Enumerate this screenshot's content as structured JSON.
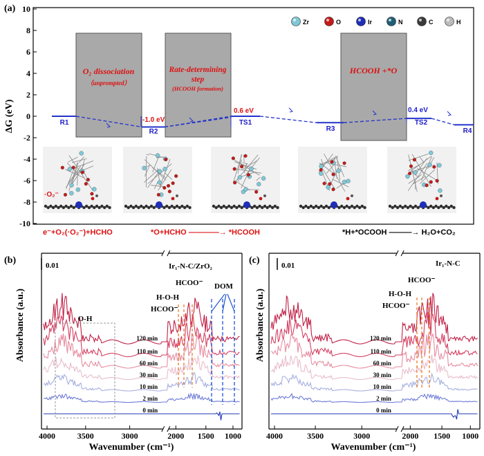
{
  "chart_data": [
    {
      "type": "line",
      "panel": "(a)",
      "ylabel": "ΔG (eV)",
      "ylim": [
        -10,
        10
      ],
      "yticks": [
        "10",
        "8",
        "6",
        "4",
        "2",
        "0",
        "-2",
        "-4",
        "-6",
        "-8",
        "-10"
      ],
      "legend": [
        "Zr",
        "O",
        "Ir",
        "N",
        "C",
        "H"
      ],
      "legend_colors": [
        "#7fc8d8",
        "#c41a1a",
        "#1f2fb8",
        "#1f5f78",
        "#3a3a3a",
        "#bbbbbb"
      ],
      "states": [
        {
          "name": "R1",
          "energy": 0.0
        },
        {
          "name": "R2",
          "energy": -1.0
        },
        {
          "name": "TS1",
          "energy": 0.0
        },
        {
          "name": "R3",
          "energy": -0.6
        },
        {
          "name": "TS2",
          "energy": -0.2
        },
        {
          "name": "R4",
          "energy": -0.8
        }
      ],
      "energy_labels": [
        "-1.0 eV",
        "0.6 eV",
        "0.4 eV"
      ],
      "boxes": [
        {
          "title": "O₂ dissociation",
          "subtitle": "（unprompted）"
        },
        {
          "title": "Rate-determining step",
          "subtitle": "(HCOOH formation)"
        },
        {
          "title": "HCOOH +*O",
          "subtitle": ""
        }
      ],
      "reactions": [
        {
          "text": "e⁻+O₂(·O₂⁻)+HCHO",
          "color": "#dd1111"
        },
        {
          "text": "*O+HCHO ————→ *HCOOH",
          "color": "#dd1111"
        },
        {
          "text": "*H+*OCOOH ———→ H₂O+CO₂",
          "color": "#000000"
        }
      ],
      "o_label": "·O₂⁻"
    },
    {
      "type": "line",
      "panel": "(b)",
      "title": "Ir₁-N-C/ZrO₂",
      "xlabel": "Wavenumber (cm⁻¹)",
      "ylabel": "Absorbance (a.u.)",
      "xticks": [
        "4000",
        "3500",
        "3000",
        "2000",
        "1500",
        "1000"
      ],
      "scale_bar": "0.01",
      "series": [
        {
          "name": "120 min",
          "color": "#c01f45"
        },
        {
          "name": "110 min",
          "color": "#d33d60"
        },
        {
          "name": "60 min",
          "color": "#e68ca0"
        },
        {
          "name": "30 min",
          "color": "#e9bccb"
        },
        {
          "name": "10 min",
          "color": "#a6afe0"
        },
        {
          "name": "2 min",
          "color": "#6c7ad8"
        },
        {
          "name": "0 min",
          "color": "#1f35b3"
        }
      ],
      "annotations": [
        "O-H",
        "H-O-H",
        "HCOO⁻",
        "HCOO⁻",
        "DOM"
      ]
    },
    {
      "type": "line",
      "panel": "(c)",
      "title": "Ir₁-N-C",
      "xlabel": "Wavenumber (cm⁻¹)",
      "ylabel": "Absorbance (a.u.)",
      "xticks": [
        "4000",
        "3500",
        "3000",
        "2000",
        "1500",
        "1000"
      ],
      "scale_bar": "0.01",
      "series": [
        {
          "name": "120 min",
          "color": "#c01f45"
        },
        {
          "name": "110 min",
          "color": "#d33d60"
        },
        {
          "name": "60 min",
          "color": "#e68ca0"
        },
        {
          "name": "30 min",
          "color": "#e9bccb"
        },
        {
          "name": "10 min",
          "color": "#a6afe0"
        },
        {
          "name": "2 min",
          "color": "#6c7ad8"
        },
        {
          "name": "0 min",
          "color": "#1f35b3"
        }
      ],
      "annotations": [
        "H-O-H",
        "HCOO⁻",
        "HCOO⁻"
      ]
    }
  ]
}
